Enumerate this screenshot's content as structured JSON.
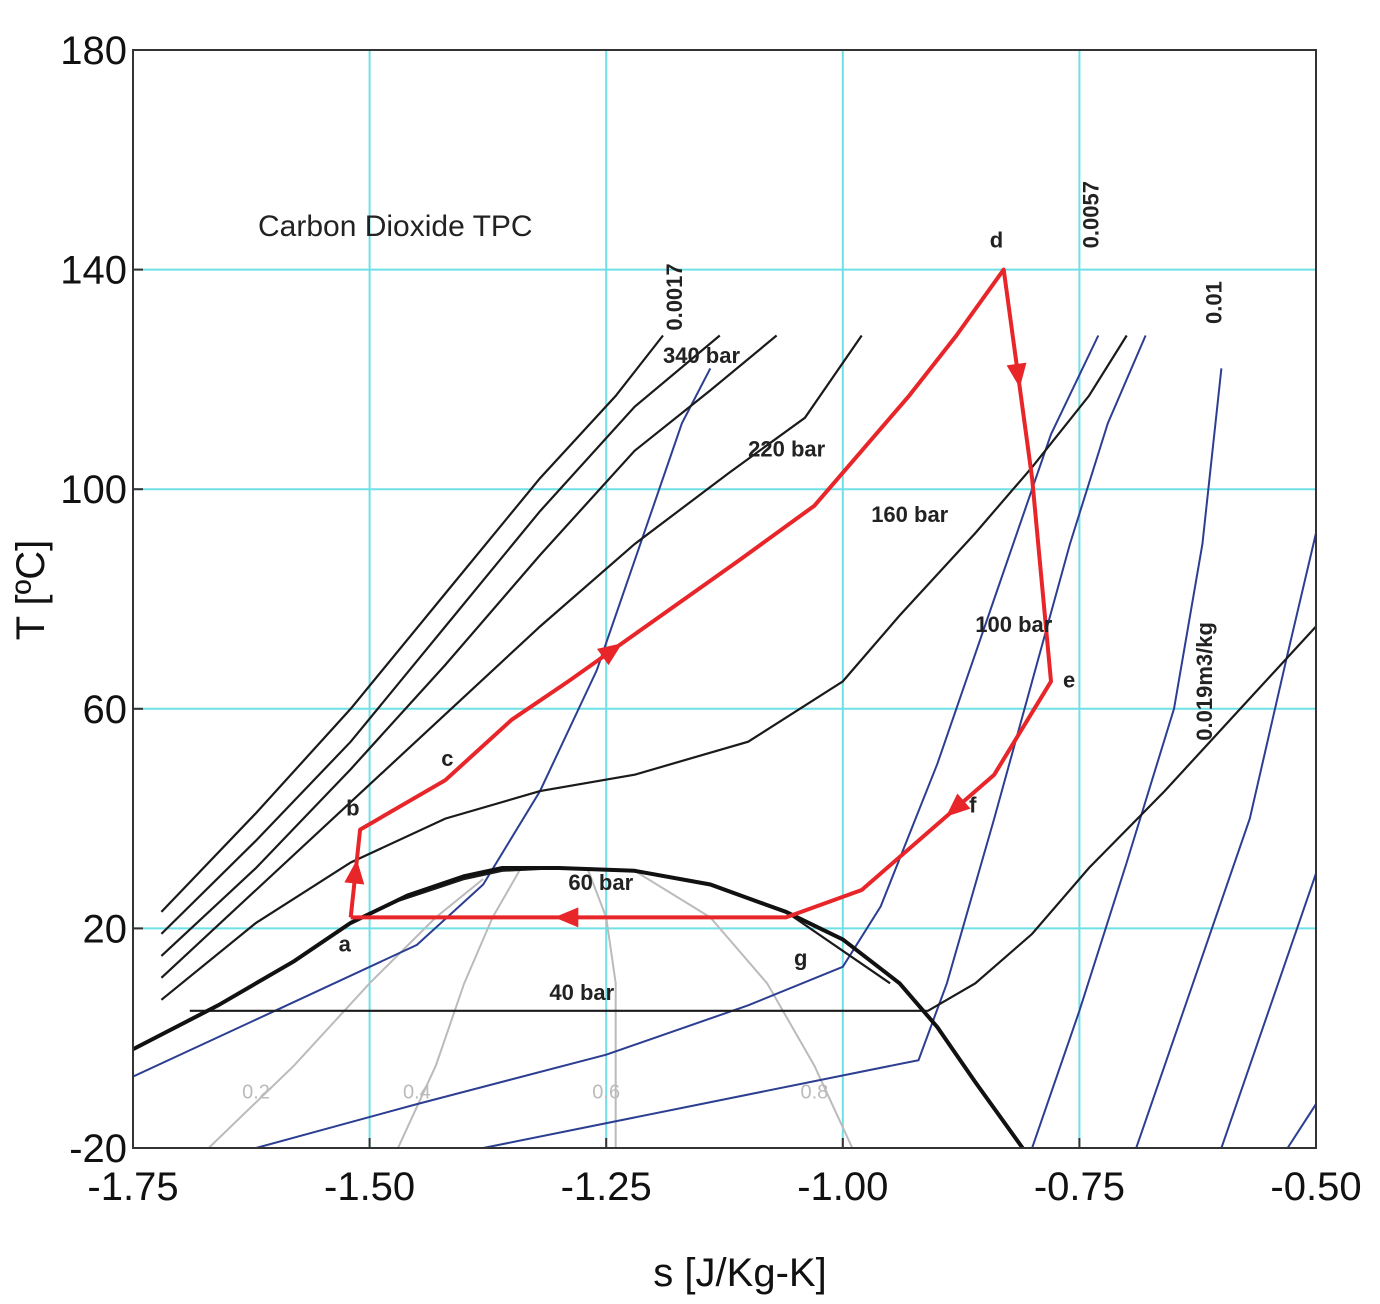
{
  "chart_data": {
    "type": "line",
    "title": "Carbon Dioxide TPC",
    "xlabel": "s [J/Kg-K]",
    "ylabel": "T [ºC]",
    "xlim": [
      -1.75,
      -0.5
    ],
    "ylim": [
      -20,
      180
    ],
    "xticks": [
      "-1.75",
      "-1.50",
      "-1.25",
      "-1.00",
      "-0.75",
      "-0.50"
    ],
    "yticks": [
      "-20",
      "20",
      "60",
      "100",
      "140",
      "180"
    ],
    "grid_x": [
      -1.5,
      -1.25,
      -1.0,
      -0.75
    ],
    "grid_y": [
      20,
      60,
      100,
      140
    ],
    "colors": {
      "cycle": "#e8262a",
      "isobar": "#1a1a1a",
      "isochore": "#2c3e91",
      "quality": "#bbbbbb",
      "grid": "#6fe0e6",
      "dome": "#111111"
    },
    "saturation_dome": [
      [
        -1.75,
        -2
      ],
      [
        -1.66,
        6
      ],
      [
        -1.58,
        14
      ],
      [
        -1.52,
        21
      ],
      [
        -1.46,
        26
      ],
      [
        -1.4,
        29.5
      ],
      [
        -1.36,
        31
      ],
      [
        -1.3,
        31
      ],
      [
        -1.22,
        30.5
      ],
      [
        -1.14,
        28
      ],
      [
        -1.06,
        23
      ],
      [
        -1.0,
        18
      ],
      [
        -0.94,
        10
      ],
      [
        -0.9,
        2
      ],
      [
        -0.86,
        -8
      ],
      [
        -0.81,
        -20
      ]
    ],
    "cycle": {
      "points": [
        {
          "label": "a",
          "s": -1.52,
          "T": 22
        },
        {
          "label": "b",
          "s": -1.51,
          "T": 38
        },
        {
          "label": "c",
          "s": -1.42,
          "T": 47
        },
        {
          "label": "d",
          "s": -0.83,
          "T": 140
        },
        {
          "label": "e",
          "s": -0.78,
          "T": 65
        },
        {
          "label": "f",
          "s": -0.82,
          "T": 52
        },
        {
          "label": "g",
          "s": -1.06,
          "T": 22
        }
      ],
      "path": [
        [
          -1.52,
          22
        ],
        [
          -1.51,
          38
        ],
        [
          -1.42,
          47
        ],
        [
          -1.35,
          58
        ],
        [
          -1.29,
          65
        ],
        [
          -1.2,
          76
        ],
        [
          -1.11,
          87
        ],
        [
          -1.03,
          97
        ],
        [
          -0.98,
          107
        ],
        [
          -0.93,
          117
        ],
        [
          -0.88,
          128
        ],
        [
          -0.83,
          140
        ],
        [
          -0.8,
          102
        ],
        [
          -0.78,
          65
        ],
        [
          -0.84,
          48
        ],
        [
          -0.92,
          36
        ],
        [
          -0.98,
          27
        ],
        [
          -1.06,
          22
        ],
        [
          -1.52,
          22
        ]
      ]
    },
    "isobars": [
      {
        "name": "340 bar",
        "points": [
          [
            -1.72,
            23
          ],
          [
            -1.62,
            41
          ],
          [
            -1.52,
            60
          ],
          [
            -1.42,
            81
          ],
          [
            -1.32,
            102
          ],
          [
            -1.24,
            117
          ],
          [
            -1.19,
            128
          ]
        ]
      },
      {
        "name": "",
        "points": [
          [
            -1.72,
            19
          ],
          [
            -1.62,
            36
          ],
          [
            -1.52,
            54
          ],
          [
            -1.42,
            75
          ],
          [
            -1.32,
            96
          ],
          [
            -1.22,
            115
          ],
          [
            -1.13,
            128
          ]
        ]
      },
      {
        "name": "220 bar",
        "points": [
          [
            -1.72,
            15
          ],
          [
            -1.62,
            31
          ],
          [
            -1.52,
            49
          ],
          [
            -1.42,
            68
          ],
          [
            -1.32,
            88
          ],
          [
            -1.22,
            107
          ],
          [
            -1.14,
            118
          ],
          [
            -1.07,
            128
          ]
        ]
      },
      {
        "name": "160 bar",
        "points": [
          [
            -1.72,
            11
          ],
          [
            -1.62,
            27
          ],
          [
            -1.52,
            43
          ],
          [
            -1.42,
            59
          ],
          [
            -1.32,
            75
          ],
          [
            -1.22,
            90
          ],
          [
            -1.12,
            103
          ],
          [
            -1.04,
            113
          ],
          [
            -0.98,
            128
          ]
        ]
      },
      {
        "name": "100 bar",
        "points": [
          [
            -1.72,
            7
          ],
          [
            -1.62,
            21
          ],
          [
            -1.52,
            32
          ],
          [
            -1.42,
            40
          ],
          [
            -1.32,
            45
          ],
          [
            -1.22,
            48
          ],
          [
            -1.1,
            54
          ],
          [
            -1.0,
            65
          ],
          [
            -0.94,
            77
          ],
          [
            -0.86,
            92
          ],
          [
            -0.8,
            104
          ],
          [
            -0.74,
            117
          ],
          [
            -0.7,
            128
          ]
        ]
      },
      {
        "name": "60 bar",
        "points": [
          [
            -1.75,
            -2
          ],
          [
            -1.66,
            6
          ],
          [
            -1.58,
            14
          ],
          [
            -1.52,
            21
          ],
          [
            -1.47,
            25
          ],
          [
            -1.4,
            29
          ],
          [
            -1.36,
            30.5
          ],
          [
            -1.3,
            31
          ],
          [
            -1.22,
            30.5
          ],
          [
            -1.14,
            28
          ],
          [
            -1.06,
            23
          ],
          [
            -0.95,
            10
          ]
        ]
      },
      {
        "name": "40 bar",
        "points": [
          [
            -1.69,
            5
          ],
          [
            -1.3,
            5
          ],
          [
            -1.0,
            5
          ],
          [
            -0.91,
            5
          ],
          [
            -0.86,
            10
          ],
          [
            -0.8,
            19
          ],
          [
            -0.74,
            31
          ],
          [
            -0.66,
            45
          ],
          [
            -0.58,
            60
          ],
          [
            -0.5,
            75
          ]
        ]
      }
    ],
    "isochores": [
      {
        "name": "0.0017",
        "points": [
          [
            -1.75,
            -7
          ],
          [
            -1.6,
            5
          ],
          [
            -1.45,
            17
          ],
          [
            -1.38,
            28
          ],
          [
            -1.32,
            45
          ],
          [
            -1.26,
            67
          ],
          [
            -1.21,
            92
          ],
          [
            -1.17,
            112
          ],
          [
            -1.14,
            122
          ]
        ]
      },
      {
        "name": "",
        "points": [
          [
            -1.62,
            -20
          ],
          [
            -1.45,
            -12
          ],
          [
            -1.25,
            -3
          ],
          [
            -1.1,
            6
          ],
          [
            -1.0,
            13
          ],
          [
            -0.96,
            24
          ],
          [
            -0.9,
            50
          ],
          [
            -0.84,
            80
          ],
          [
            -0.78,
            110
          ],
          [
            -0.73,
            128
          ]
        ]
      },
      {
        "name": "0.0057",
        "points": [
          [
            -1.38,
            -20
          ],
          [
            -1.15,
            -12
          ],
          [
            -0.92,
            -4
          ],
          [
            -0.89,
            10
          ],
          [
            -0.84,
            40
          ],
          [
            -0.8,
            65
          ],
          [
            -0.76,
            90
          ],
          [
            -0.72,
            112
          ],
          [
            -0.68,
            128
          ]
        ]
      },
      {
        "name": "0.01",
        "points": [
          [
            -0.8,
            -20
          ],
          [
            -0.75,
            5
          ],
          [
            -0.7,
            32
          ],
          [
            -0.65,
            60
          ],
          [
            -0.62,
            90
          ],
          [
            -0.6,
            122
          ]
        ]
      },
      {
        "name": "0.019m3/kg",
        "points": [
          [
            -0.69,
            -20
          ],
          [
            -0.63,
            10
          ],
          [
            -0.57,
            40
          ],
          [
            -0.53,
            70
          ],
          [
            -0.5,
            92
          ]
        ]
      },
      {
        "name": "",
        "points": [
          [
            -0.6,
            -20
          ],
          [
            -0.55,
            5
          ],
          [
            -0.5,
            30
          ]
        ]
      },
      {
        "name": "",
        "points": [
          [
            -0.53,
            -20
          ],
          [
            -0.5,
            -12
          ]
        ]
      }
    ],
    "quality_lines": [
      {
        "name": "0.2",
        "points": [
          [
            -1.67,
            -20
          ],
          [
            -1.58,
            -5
          ],
          [
            -1.5,
            10
          ],
          [
            -1.43,
            22
          ],
          [
            -1.38,
            29
          ]
        ]
      },
      {
        "name": "0.4",
        "points": [
          [
            -1.47,
            -20
          ],
          [
            -1.43,
            -5
          ],
          [
            -1.4,
            10
          ],
          [
            -1.37,
            22
          ],
          [
            -1.34,
            31
          ]
        ]
      },
      {
        "name": "0.6",
        "points": [
          [
            -1.24,
            -20
          ],
          [
            -1.24,
            -5
          ],
          [
            -1.24,
            10
          ],
          [
            -1.25,
            22
          ],
          [
            -1.27,
            31
          ]
        ]
      },
      {
        "name": "0.8",
        "points": [
          [
            -0.99,
            -20
          ],
          [
            -1.03,
            -5
          ],
          [
            -1.08,
            10
          ],
          [
            -1.14,
            22
          ],
          [
            -1.22,
            30.5
          ]
        ]
      }
    ],
    "isobar_labels": [
      {
        "text": "340 bar",
        "s": -1.19,
        "T": 123
      },
      {
        "text": "220 bar",
        "s": -1.1,
        "T": 106
      },
      {
        "text": "160 bar",
        "s": -0.97,
        "T": 94
      },
      {
        "text": "100 bar",
        "s": -0.86,
        "T": 74
      },
      {
        "text": "60 bar",
        "s": -1.29,
        "T": 27
      },
      {
        "text": "40 bar",
        "s": -1.31,
        "T": 7
      }
    ],
    "isochore_labels": [
      {
        "text": "0.0017",
        "s": -1.17,
        "T": 135
      },
      {
        "text": "0.0057",
        "s": -0.73,
        "T": 150
      },
      {
        "text": "0.01",
        "s": -0.6,
        "T": 134
      },
      {
        "text": "0.019m3/kg",
        "s": -0.61,
        "T": 65
      }
    ],
    "quality_labels": [
      {
        "text": "0.2",
        "s": -1.62,
        "T": -11
      },
      {
        "text": "0.4",
        "s": -1.45,
        "T": -11
      },
      {
        "text": "0.6",
        "s": -1.25,
        "T": -11
      },
      {
        "text": "0.8",
        "s": -1.03,
        "T": -11
      }
    ]
  }
}
